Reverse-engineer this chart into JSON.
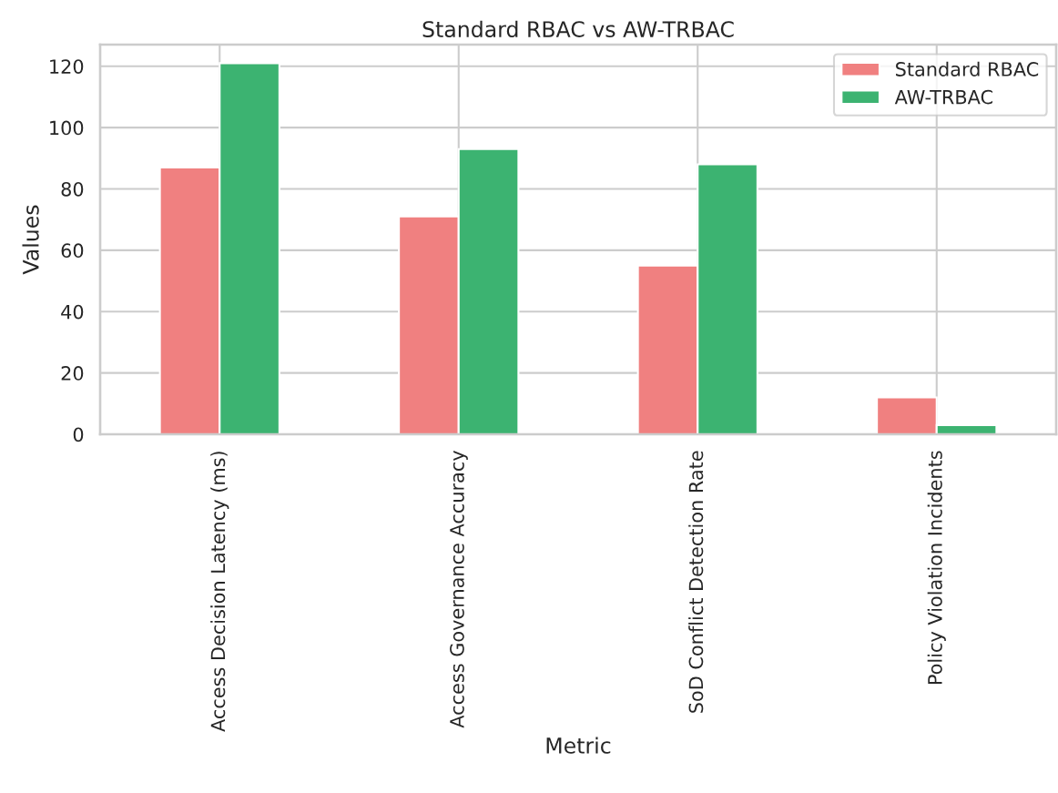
{
  "chart_data": {
    "type": "bar",
    "title": "Standard RBAC vs AW-TRBAC",
    "xlabel": "Metric",
    "ylabel": "Values",
    "categories": [
      "Access Decision Latency (ms)",
      "Access Governance Accuracy",
      "SoD Conflict Detection Rate",
      "Policy Violation Incidents"
    ],
    "series": [
      {
        "name": "Standard RBAC",
        "color": "#f08080",
        "values": [
          87,
          71,
          55,
          12
        ]
      },
      {
        "name": "AW-TRBAC",
        "color": "#3cb371",
        "values": [
          121,
          93,
          88,
          3
        ]
      }
    ],
    "ylim": [
      0,
      127.05
    ],
    "yticks": [
      0,
      20,
      40,
      60,
      80,
      100,
      120
    ],
    "grid": true,
    "legend": "top right"
  }
}
